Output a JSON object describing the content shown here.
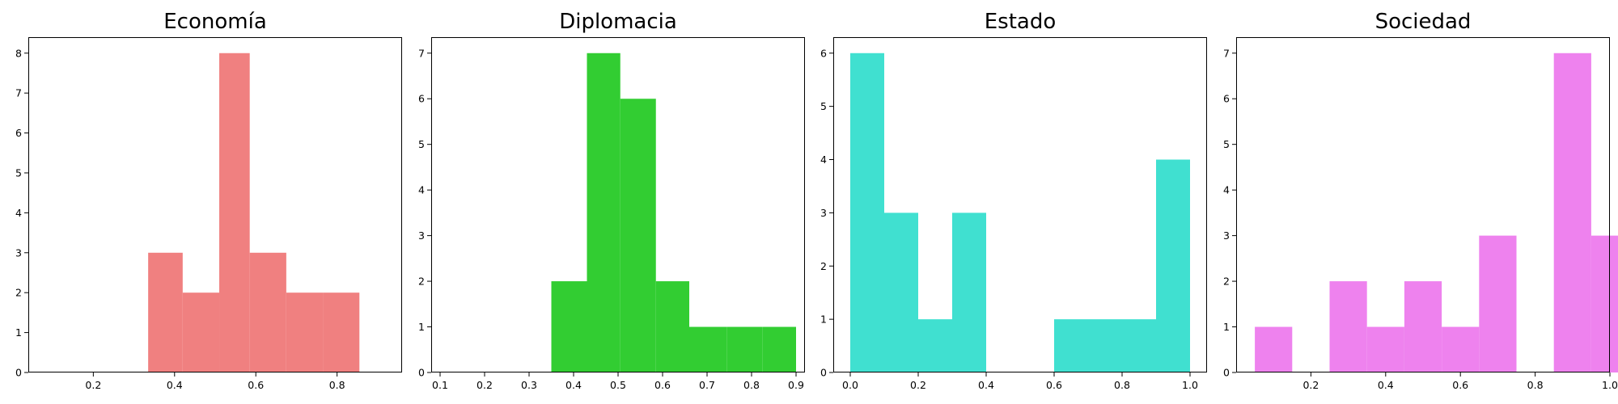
{
  "chart_data": [
    {
      "type": "histogram",
      "title": "Economía",
      "color": "#f08080",
      "xlim": [
        0.04,
        0.96
      ],
      "ylim": [
        0,
        8.4
      ],
      "xticks": [
        0.2,
        0.4,
        0.6,
        0.8
      ],
      "yticks": [
        0,
        1,
        2,
        3,
        4,
        5,
        6,
        7,
        8
      ],
      "bins": [
        {
          "x0": 0.335,
          "x1": 0.42,
          "count": 3
        },
        {
          "x0": 0.42,
          "x1": 0.51,
          "count": 2
        },
        {
          "x0": 0.51,
          "x1": 0.585,
          "count": 8
        },
        {
          "x0": 0.585,
          "x1": 0.675,
          "count": 3
        },
        {
          "x0": 0.675,
          "x1": 0.765,
          "count": 2
        },
        {
          "x0": 0.765,
          "x1": 0.855,
          "count": 2
        }
      ]
    },
    {
      "type": "histogram",
      "title": "Diplomacia",
      "color": "#32cd32",
      "xlim": [
        0.08,
        0.92
      ],
      "ylim": [
        0,
        7.35
      ],
      "xticks": [
        0.1,
        0.2,
        0.3,
        0.4,
        0.5,
        0.6,
        0.7,
        0.8,
        0.9
      ],
      "yticks": [
        0,
        1,
        2,
        3,
        4,
        5,
        6,
        7
      ],
      "bins": [
        {
          "x0": 0.35,
          "x1": 0.43,
          "count": 2
        },
        {
          "x0": 0.43,
          "x1": 0.505,
          "count": 7
        },
        {
          "x0": 0.505,
          "x1": 0.585,
          "count": 6
        },
        {
          "x0": 0.585,
          "x1": 0.66,
          "count": 2
        },
        {
          "x0": 0.66,
          "x1": 0.745,
          "count": 1
        },
        {
          "x0": 0.745,
          "x1": 0.825,
          "count": 1
        },
        {
          "x0": 0.825,
          "x1": 0.9,
          "count": 1
        }
      ]
    },
    {
      "type": "histogram",
      "title": "Estado",
      "color": "#40e0d0",
      "xlim": [
        -0.05,
        1.05
      ],
      "ylim": [
        0,
        6.3
      ],
      "xticks": [
        0.0,
        0.2,
        0.4,
        0.6,
        0.8,
        1.0
      ],
      "yticks": [
        0,
        1,
        2,
        3,
        4,
        5,
        6
      ],
      "bins": [
        {
          "x0": 0.0,
          "x1": 0.1,
          "count": 6
        },
        {
          "x0": 0.1,
          "x1": 0.2,
          "count": 3
        },
        {
          "x0": 0.2,
          "x1": 0.3,
          "count": 1
        },
        {
          "x0": 0.3,
          "x1": 0.4,
          "count": 3
        },
        {
          "x0": 0.4,
          "x1": 0.5,
          "count": 0
        },
        {
          "x0": 0.5,
          "x1": 0.6,
          "count": 0
        },
        {
          "x0": 0.6,
          "x1": 0.7,
          "count": 1
        },
        {
          "x0": 0.7,
          "x1": 0.8,
          "count": 1
        },
        {
          "x0": 0.8,
          "x1": 0.9,
          "count": 1
        },
        {
          "x0": 0.9,
          "x1": 1.0,
          "count": 4
        }
      ]
    },
    {
      "type": "histogram",
      "title": "Sociedad",
      "color": "#ee82ee",
      "xlim": [
        0.0,
        1.0
      ],
      "ylim": [
        0,
        7.35
      ],
      "xticks": [
        0.2,
        0.4,
        0.6,
        0.8,
        1.0
      ],
      "yticks": [
        0,
        1,
        2,
        3,
        4,
        5,
        6,
        7
      ],
      "bins": [
        {
          "x0": 0.05,
          "x1": 0.15,
          "count": 1
        },
        {
          "x0": 0.15,
          "x1": 0.25,
          "count": 0
        },
        {
          "x0": 0.25,
          "x1": 0.35,
          "count": 2
        },
        {
          "x0": 0.35,
          "x1": 0.45,
          "count": 1
        },
        {
          "x0": 0.45,
          "x1": 0.55,
          "count": 2
        },
        {
          "x0": 0.55,
          "x1": 0.65,
          "count": 1
        },
        {
          "x0": 0.65,
          "x1": 0.75,
          "count": 3
        },
        {
          "x0": 0.75,
          "x1": 0.85,
          "count": 0
        },
        {
          "x0": 0.85,
          "x1": 0.95,
          "count": 7
        },
        {
          "x0": 0.95,
          "x1": 1.05,
          "count": 3
        }
      ]
    }
  ]
}
